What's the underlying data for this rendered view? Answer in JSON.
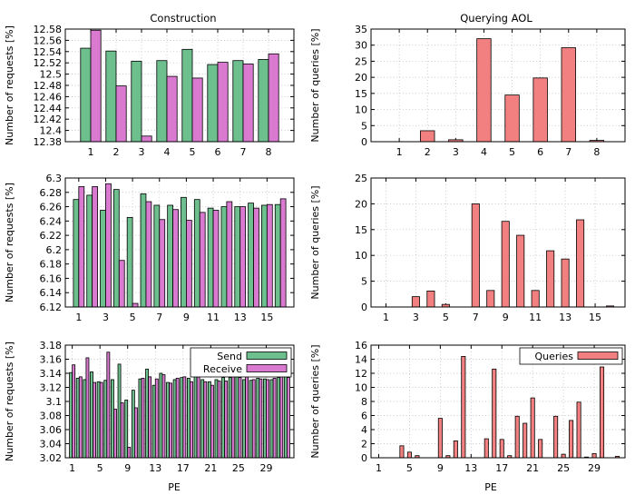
{
  "colors": {
    "send": "#6dbf8e",
    "receive": "#d97ad0",
    "queries": "#f28080"
  },
  "column_titles": [
    "Construction",
    "Querying AOL"
  ],
  "common_xlabel": "PE",
  "legends": {
    "send": "Send",
    "receive": "Receive",
    "queries": "Queries"
  },
  "chart_data": [
    {
      "type": "bar",
      "title": "Construction",
      "ylabel": "Number of requests [%]",
      "xlabel": "",
      "ylim": [
        12.38,
        12.58
      ],
      "yticks": [
        "12.38",
        "12.4",
        "12.42",
        "12.44",
        "12.46",
        "12.48",
        "12.5",
        "12.52",
        "12.54",
        "12.56",
        "12.58"
      ],
      "x": [
        1,
        2,
        3,
        4,
        5,
        6,
        7,
        8
      ],
      "xticks": [
        1,
        2,
        3,
        4,
        5,
        6,
        7,
        8
      ],
      "grid": true,
      "series": [
        {
          "name": "Send",
          "values": [
            12.546,
            12.541,
            12.523,
            12.524,
            12.544,
            12.517,
            12.524,
            12.526
          ]
        },
        {
          "name": "Receive",
          "values": [
            12.578,
            12.479,
            12.39,
            12.496,
            12.493,
            12.521,
            12.518,
            12.536
          ]
        }
      ]
    },
    {
      "type": "bar",
      "title": "Querying AOL",
      "ylabel": "Number of queries [%]",
      "xlabel": "",
      "ylim": [
        0,
        35
      ],
      "yticks": [
        "0",
        "5",
        "10",
        "15",
        "20",
        "25",
        "30",
        "35"
      ],
      "x": [
        1,
        2,
        3,
        4,
        5,
        6,
        7,
        8
      ],
      "xticks": [
        1,
        2,
        3,
        4,
        5,
        6,
        7,
        8
      ],
      "grid": true,
      "series": [
        {
          "name": "Queries",
          "values": [
            0,
            3.4,
            0.6,
            32,
            14.5,
            19.8,
            29.2,
            0.4
          ]
        }
      ]
    },
    {
      "type": "bar",
      "title": "",
      "ylabel": "Number of requests [%]",
      "xlabel": "",
      "ylim": [
        6.12,
        6.3
      ],
      "yticks": [
        "6.12",
        "6.14",
        "6.16",
        "6.18",
        "6.2",
        "6.22",
        "6.24",
        "6.26",
        "6.28",
        "6.3"
      ],
      "x": [
        1,
        2,
        3,
        4,
        5,
        6,
        7,
        8,
        9,
        10,
        11,
        12,
        13,
        14,
        15,
        16
      ],
      "xticks": [
        1,
        3,
        5,
        7,
        9,
        11,
        13,
        15
      ],
      "grid": true,
      "series": [
        {
          "name": "Send",
          "values": [
            6.27,
            6.276,
            6.255,
            6.284,
            6.245,
            6.278,
            6.262,
            6.262,
            6.273,
            6.27,
            6.258,
            6.26,
            6.26,
            6.265,
            6.262,
            6.263
          ]
        },
        {
          "name": "Receive",
          "values": [
            6.288,
            6.288,
            6.292,
            6.185,
            6.125,
            6.267,
            6.242,
            6.256,
            6.241,
            6.252,
            6.255,
            6.267,
            6.26,
            6.258,
            6.263,
            6.271
          ]
        }
      ]
    },
    {
      "type": "bar",
      "title": "",
      "ylabel": "Number of queries [%]",
      "xlabel": "",
      "ylim": [
        0,
        25
      ],
      "yticks": [
        "0",
        "5",
        "10",
        "15",
        "20",
        "25"
      ],
      "x": [
        1,
        2,
        3,
        4,
        5,
        6,
        7,
        8,
        9,
        10,
        11,
        12,
        13,
        14,
        15,
        16
      ],
      "xticks": [
        1,
        3,
        5,
        7,
        9,
        11,
        13,
        15
      ],
      "grid": true,
      "series": [
        {
          "name": "Queries",
          "values": [
            0,
            0,
            2,
            3.1,
            0.5,
            0,
            20,
            3.2,
            16.6,
            13.9,
            3.2,
            10.9,
            9.3,
            16.9,
            0,
            0.2
          ]
        }
      ]
    },
    {
      "type": "bar",
      "title": "",
      "ylabel": "Number of requests [%]",
      "xlabel": "PE",
      "ylim": [
        3.02,
        3.18
      ],
      "yticks": [
        "3.02",
        "3.04",
        "3.06",
        "3.08",
        "3.1",
        "3.12",
        "3.14",
        "3.16",
        "3.18"
      ],
      "x": [
        1,
        2,
        3,
        4,
        5,
        6,
        7,
        8,
        9,
        10,
        11,
        12,
        13,
        14,
        15,
        16,
        17,
        18,
        19,
        20,
        21,
        22,
        23,
        24,
        25,
        26,
        27,
        28,
        29,
        30,
        31,
        32
      ],
      "xticks": [
        1,
        5,
        9,
        13,
        17,
        21,
        25,
        29
      ],
      "grid": true,
      "legend": "top-right",
      "series": [
        {
          "name": "Send",
          "values": [
            3.141,
            3.133,
            3.131,
            3.142,
            3.128,
            3.13,
            3.131,
            3.153,
            3.102,
            3.116,
            3.132,
            3.146,
            3.123,
            3.14,
            3.127,
            3.131,
            3.134,
            3.133,
            3.136,
            3.131,
            3.128,
            3.131,
            3.134,
            3.134,
            3.135,
            3.131,
            3.13,
            3.133,
            3.132,
            3.131,
            3.134,
            3.136
          ]
        },
        {
          "name": "Receive",
          "values": [
            3.152,
            3.135,
            3.162,
            3.127,
            3.127,
            3.17,
            3.089,
            3.098,
            3.035,
            3.091,
            3.133,
            3.135,
            3.132,
            3.138,
            3.126,
            3.133,
            3.135,
            3.128,
            3.135,
            3.128,
            3.123,
            3.129,
            3.129,
            3.136,
            3.134,
            3.136,
            3.131,
            3.132,
            3.131,
            3.133,
            3.136,
            3.134
          ]
        }
      ]
    },
    {
      "type": "bar",
      "title": "",
      "ylabel": "Number of queries [%]",
      "xlabel": "PE",
      "ylim": [
        0,
        16
      ],
      "yticks": [
        "0",
        "2",
        "4",
        "6",
        "8",
        "10",
        "12",
        "14",
        "16"
      ],
      "x": [
        1,
        2,
        3,
        4,
        5,
        6,
        7,
        8,
        9,
        10,
        11,
        12,
        13,
        14,
        15,
        16,
        17,
        18,
        19,
        20,
        21,
        22,
        23,
        24,
        25,
        26,
        27,
        28,
        29,
        30,
        31,
        32
      ],
      "xticks": [
        1,
        5,
        9,
        13,
        17,
        21,
        25,
        29
      ],
      "grid": true,
      "legend": "top-right",
      "series": [
        {
          "name": "Queries",
          "values": [
            0,
            0,
            0,
            1.7,
            0.8,
            0.3,
            0,
            0,
            5.6,
            0.3,
            2.4,
            14.4,
            0,
            0,
            2.7,
            12.6,
            2.6,
            0.3,
            5.9,
            4.9,
            8.5,
            2.6,
            0,
            5.9,
            0.5,
            5.3,
            7.9,
            0.1,
            0.6,
            12.9,
            0,
            0.2
          ]
        }
      ]
    }
  ]
}
